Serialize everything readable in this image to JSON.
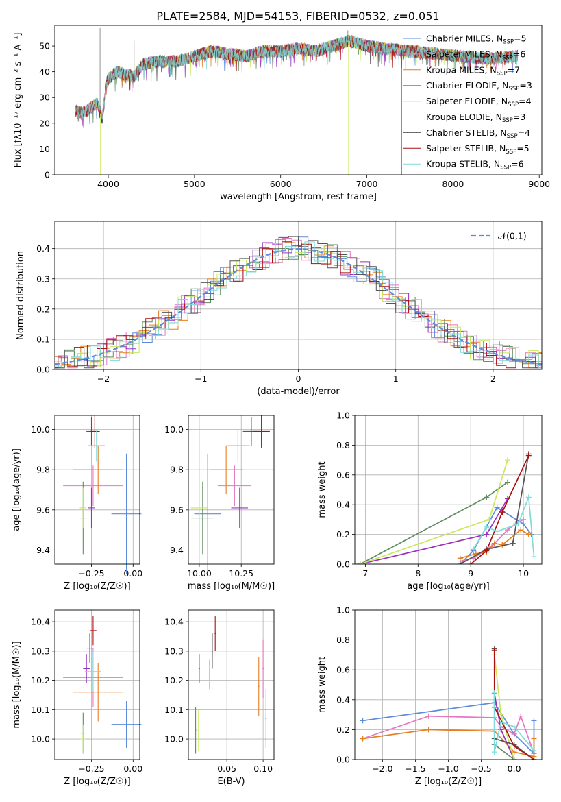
{
  "title": "PLATE=2584, MJD=54153, FIBERID=0532, z=0.051",
  "colors": {
    "chabrier_miles": "#5b8bd9",
    "salpeter_miles": "#e377c2",
    "kroupa_miles": "#e67e22",
    "chabrier_elodie": "#5e8c5e",
    "salpeter_elodie": "#9b30c0",
    "kroupa_elodie": "#c8e85a",
    "chabrier_stelib": "#555555",
    "salpeter_stelib": "#aa1111",
    "kroupa_stelib": "#7fdbdb"
  },
  "chart_data": [
    {
      "id": "spectrum",
      "type": "line",
      "xlabel": "wavelength [Angstrom, rest frame]",
      "ylabel": "Flux [fλ10⁻¹⁷ erg cm⁻² s⁻¹ A⁻¹]",
      "xlim": [
        3380,
        9030
      ],
      "ylim": [
        0,
        58
      ],
      "xticks": [
        "4000",
        "5000",
        "6000",
        "7000",
        "8000",
        "9000"
      ],
      "yticks": [
        "0",
        "10",
        "20",
        "30",
        "40",
        "50"
      ],
      "legend_position": "top-right",
      "series": [
        {
          "name": "Chabrier MILES, N_SSP=5",
          "key": "chabrier_miles"
        },
        {
          "name": "Salpeter MILES, N_SSP=6",
          "key": "salpeter_miles"
        },
        {
          "name": "Kroupa MILES, N_SSP=7",
          "key": "kroupa_miles"
        },
        {
          "name": "Chabrier ELODIE, N_SSP=3",
          "key": "chabrier_elodie"
        },
        {
          "name": "Salpeter ELODIE, N_SSP=4",
          "key": "salpeter_elodie"
        },
        {
          "name": "Kroupa ELODIE, N_SSP=3",
          "key": "kroupa_elodie"
        },
        {
          "name": "Chabrier STELIB, N_SSP=4",
          "key": "chabrier_stelib"
        },
        {
          "name": "Salpeter STELIB, N_SSP=5",
          "key": "salpeter_stelib"
        },
        {
          "name": "Kroupa STELIB, N_SSP=6",
          "key": "kroupa_stelib"
        }
      ],
      "continuum": {
        "x": [
          3620,
          3700,
          3800,
          3870,
          3930,
          3990,
          4100,
          4300,
          4400,
          4600,
          4800,
          5000,
          5200,
          5400,
          5600,
          5800,
          6000,
          6200,
          6400,
          6600,
          6800,
          7000,
          7200,
          7500,
          7800,
          8100,
          8400,
          8750
        ],
        "y": [
          25,
          24,
          26,
          28,
          22,
          37,
          40,
          38,
          43,
          44,
          44,
          46,
          48,
          47,
          46,
          48,
          48,
          49,
          48,
          50,
          52,
          50,
          49,
          48,
          47,
          46,
          45,
          46
        ]
      },
      "spikes": [
        {
          "x": 3905,
          "y": 57
        },
        {
          "x": 4300,
          "y": 52
        },
        {
          "x": 6780,
          "y": 56
        }
      ],
      "dropouts": [
        {
          "x": 3912,
          "key": "kroupa_elodie"
        },
        {
          "x": 6790,
          "key": "kroupa_elodie"
        },
        {
          "x": 7400,
          "key": "salpeter_stelib"
        }
      ]
    },
    {
      "id": "residuals",
      "type": "histogram",
      "xlabel": "(data-model)/error",
      "ylabel": "Normed distribution",
      "xlim": [
        -2.5,
        2.5
      ],
      "ylim": [
        0,
        0.49
      ],
      "xticks": [
        "−2",
        "−1",
        "0",
        "1",
        "2"
      ],
      "yticks": [
        "0.0",
        "0.1",
        "0.2",
        "0.3",
        "0.4"
      ],
      "legend": "𝒩(0,1)",
      "legend_position": "top-right",
      "bin_width": 0.1
    },
    {
      "id": "z_age",
      "type": "scatter",
      "xlabel": "Z [log₁₀(Z/Z☉)]",
      "ylabel": "age  [log₁₀(age/yr)]",
      "xlim": [
        -0.47,
        0.04
      ],
      "ylim": [
        9.33,
        10.07
      ],
      "xticks": [
        "−0.25",
        "0.00"
      ],
      "yticks": [
        "9.4",
        "9.6",
        "9.8",
        "10.0"
      ],
      "points": [
        {
          "key": "chabrier_miles",
          "x": -0.04,
          "xerr": 0.09,
          "y": 9.58,
          "yerr": 0.3
        },
        {
          "key": "salpeter_miles",
          "x": -0.24,
          "xerr": 0.18,
          "y": 9.72,
          "yerr": 0.1
        },
        {
          "key": "kroupa_miles",
          "x": -0.21,
          "xerr": 0.15,
          "y": 9.8,
          "yerr": 0.12
        },
        {
          "key": "chabrier_elodie",
          "x": -0.3,
          "xerr": 0.02,
          "y": 9.56,
          "yerr": 0.18
        },
        {
          "key": "salpeter_elodie",
          "x": -0.25,
          "xerr": 0.02,
          "y": 9.61,
          "yerr": 0.1
        },
        {
          "key": "kroupa_elodie",
          "x": -0.3,
          "xerr": 0.02,
          "y": 9.61,
          "yerr": 0.1
        },
        {
          "key": "chabrier_stelib",
          "x": -0.25,
          "xerr": 0.03,
          "y": 9.99,
          "yerr": 0.07
        },
        {
          "key": "salpeter_stelib",
          "x": -0.23,
          "xerr": 0.03,
          "y": 9.99,
          "yerr": 0.08
        },
        {
          "key": "kroupa_stelib",
          "x": -0.22,
          "xerr": 0.05,
          "y": 9.92,
          "yerr": 0.08
        }
      ]
    },
    {
      "id": "mass_age",
      "type": "scatter",
      "xlabel": "mass [log₁₀(M/M☉)]",
      "ylabel": "",
      "xlim": [
        9.935,
        10.445
      ],
      "ylim": [
        9.33,
        10.07
      ],
      "xticks": [
        "10.00",
        "10.25"
      ],
      "yticks": [
        "9.4",
        "9.6",
        "9.8",
        "10.0"
      ],
      "points": [
        {
          "key": "chabrier_miles",
          "x": 10.05,
          "xerr": 0.08,
          "y": 9.58,
          "yerr": 0.3
        },
        {
          "key": "salpeter_miles",
          "x": 10.21,
          "xerr": 0.1,
          "y": 9.72,
          "yerr": 0.1
        },
        {
          "key": "kroupa_miles",
          "x": 10.16,
          "xerr": 0.1,
          "y": 9.8,
          "yerr": 0.12
        },
        {
          "key": "chabrier_elodie",
          "x": 10.02,
          "xerr": 0.07,
          "y": 9.56,
          "yerr": 0.18
        },
        {
          "key": "salpeter_elodie",
          "x": 10.24,
          "xerr": 0.05,
          "y": 9.61,
          "yerr": 0.1
        },
        {
          "key": "kroupa_elodie",
          "x": 10.0,
          "xerr": 0.05,
          "y": 9.61,
          "yerr": 0.1
        },
        {
          "key": "chabrier_stelib",
          "x": 10.31,
          "xerr": 0.05,
          "y": 9.99,
          "yerr": 0.07
        },
        {
          "key": "salpeter_stelib",
          "x": 10.37,
          "xerr": 0.05,
          "y": 9.99,
          "yerr": 0.08
        },
        {
          "key": "kroupa_stelib",
          "x": 10.23,
          "xerr": 0.07,
          "y": 9.92,
          "yerr": 0.08
        }
      ]
    },
    {
      "id": "weight_age",
      "type": "line",
      "xlabel": "age  [log₁₀(age/yr)]",
      "ylabel": "mass weight",
      "xlim": [
        6.8,
        10.35
      ],
      "ylim": [
        0,
        1
      ],
      "xticks": [
        "7",
        "8",
        "9",
        "10"
      ],
      "yticks": [
        "0.0",
        "0.2",
        "0.4",
        "0.6",
        "0.8",
        "1.0"
      ],
      "series": [
        {
          "key": "chabrier_miles",
          "x": [
            8.8,
            9.05,
            9.5,
            10.0,
            10.15
          ],
          "y": [
            0.0,
            0.09,
            0.38,
            0.27,
            0.2
          ]
        },
        {
          "key": "salpeter_miles",
          "x": [
            8.8,
            9.05,
            9.4,
            9.7,
            9.85,
            10.0
          ],
          "y": [
            0.02,
            0.04,
            0.12,
            0.23,
            0.27,
            0.3
          ]
        },
        {
          "key": "kroupa_miles",
          "x": [
            8.8,
            9.1,
            9.3,
            9.45,
            9.6,
            9.95,
            10.1
          ],
          "y": [
            0.04,
            0.07,
            0.08,
            0.14,
            0.13,
            0.23,
            0.2
          ]
        },
        {
          "key": "chabrier_elodie",
          "x": [
            6.9,
            9.3,
            9.7
          ],
          "y": [
            0.0,
            0.45,
            0.55
          ]
        },
        {
          "key": "salpeter_elodie",
          "x": [
            6.9,
            9.3,
            9.7
          ],
          "y": [
            0.0,
            0.2,
            0.44
          ]
        },
        {
          "key": "kroupa_elodie",
          "x": [
            6.9,
            9.35,
            9.7
          ],
          "y": [
            0.0,
            0.3,
            0.7
          ]
        },
        {
          "key": "chabrier_stelib",
          "x": [
            8.8,
            9.3,
            9.8,
            10.1
          ],
          "y": [
            0.0,
            0.1,
            0.14,
            0.74
          ]
        },
        {
          "key": "salpeter_stelib",
          "x": [
            9.0,
            9.3,
            9.6,
            10.1
          ],
          "y": [
            0.0,
            0.09,
            0.35,
            0.73
          ]
        },
        {
          "key": "kroupa_stelib",
          "x": [
            9.05,
            9.3,
            9.5,
            9.9,
            10.1,
            10.2
          ],
          "y": [
            0.1,
            0.25,
            0.22,
            0.27,
            0.45,
            0.05
          ]
        }
      ]
    },
    {
      "id": "z_mass",
      "type": "scatter",
      "xlabel": "Z [log₁₀(Z/Z☉)]",
      "ylabel": "mass [log₁₀(M/M☉)]",
      "xlim": [
        -0.47,
        0.04
      ],
      "ylim": [
        9.93,
        10.44
      ],
      "xticks": [
        "−0.25",
        "0.00"
      ],
      "yticks": [
        "10.0",
        "10.1",
        "10.2",
        "10.3",
        "10.4"
      ],
      "points": [
        {
          "key": "chabrier_miles",
          "x": -0.04,
          "xerr": 0.09,
          "y": 10.05,
          "yerr": 0.08
        },
        {
          "key": "salpeter_miles",
          "x": -0.24,
          "xerr": 0.18,
          "y": 10.21,
          "yerr": 0.1
        },
        {
          "key": "kroupa_miles",
          "x": -0.21,
          "xerr": 0.15,
          "y": 10.16,
          "yerr": 0.1
        },
        {
          "key": "chabrier_elodie",
          "x": -0.3,
          "xerr": 0.02,
          "y": 10.02,
          "yerr": 0.07
        },
        {
          "key": "salpeter_elodie",
          "x": -0.28,
          "xerr": 0.02,
          "y": 10.24,
          "yerr": 0.05
        },
        {
          "key": "kroupa_elodie",
          "x": -0.3,
          "xerr": 0.02,
          "y": 10.0,
          "yerr": 0.05
        },
        {
          "key": "chabrier_stelib",
          "x": -0.26,
          "xerr": 0.02,
          "y": 10.31,
          "yerr": 0.05
        },
        {
          "key": "salpeter_stelib",
          "x": -0.24,
          "xerr": 0.02,
          "y": 10.37,
          "yerr": 0.05
        },
        {
          "key": "kroupa_stelib",
          "x": -0.24,
          "xerr": 0.05,
          "y": 10.23,
          "yerr": 0.07
        }
      ]
    },
    {
      "id": "ebv_mass",
      "type": "scatter",
      "xlabel": "E(B-V)",
      "ylabel": "",
      "xlim": [
        -0.003,
        0.115
      ],
      "ylim": [
        9.93,
        10.44
      ],
      "xticks": [
        "0.05",
        "0.10"
      ],
      "yticks": [
        "10.0",
        "10.1",
        "10.2",
        "10.3",
        "10.4"
      ],
      "points": [
        {
          "key": "chabrier_miles",
          "x": 0.104,
          "y": 10.07,
          "yerr": 0.1
        },
        {
          "key": "salpeter_miles",
          "x": 0.1,
          "y": 10.24,
          "yerr": 0.1
        },
        {
          "key": "kroupa_miles",
          "x": 0.094,
          "y": 10.18,
          "yerr": 0.1
        },
        {
          "key": "chabrier_elodie",
          "x": 0.007,
          "y": 10.03,
          "yerr": 0.08
        },
        {
          "key": "salpeter_elodie",
          "x": 0.012,
          "y": 10.24,
          "yerr": 0.05
        },
        {
          "key": "kroupa_elodie",
          "x": 0.011,
          "y": 10.03,
          "yerr": 0.07
        },
        {
          "key": "chabrier_stelib",
          "x": 0.03,
          "y": 10.3,
          "yerr": 0.06
        },
        {
          "key": "salpeter_stelib",
          "x": 0.034,
          "y": 10.36,
          "yerr": 0.06
        },
        {
          "key": "kroupa_stelib",
          "x": 0.026,
          "y": 10.22,
          "yerr": 0.05
        }
      ]
    },
    {
      "id": "weight_z",
      "type": "line",
      "xlabel": "Z [log₁₀(Z/Z☉)]",
      "ylabel": "mass weight",
      "xlim": [
        -2.42,
        0.42
      ],
      "ylim": [
        0,
        1
      ],
      "xticks": [
        "−2.0",
        "−1.5",
        "−1.0",
        "−0.5",
        "0.0"
      ],
      "yticks": [
        "0.0",
        "0.2",
        "0.4",
        "0.6",
        "0.8",
        "1.0"
      ],
      "series": [
        {
          "key": "chabrier_miles",
          "x": [
            -2.3,
            -0.3,
            0.0,
            0.3,
            0.3
          ],
          "y": [
            0.26,
            0.38,
            0.17,
            0.04,
            0.26
          ]
        },
        {
          "key": "salpeter_miles",
          "x": [
            -2.3,
            -1.3,
            -0.3,
            -0.2,
            0.0,
            0.1,
            0.3
          ],
          "y": [
            0.14,
            0.29,
            0.28,
            0.22,
            0.17,
            0.29,
            0.04
          ]
        },
        {
          "key": "kroupa_miles",
          "x": [
            -2.3,
            -1.3,
            -0.3,
            0.0,
            0.3,
            0.3
          ],
          "y": [
            0.14,
            0.2,
            0.19,
            0.05,
            0.02,
            0.14
          ]
        },
        {
          "key": "chabrier_elodie",
          "x": [
            -0.3,
            -0.3,
            0.0
          ],
          "y": [
            0.45,
            0.1,
            0.0
          ]
        },
        {
          "key": "salpeter_elodie",
          "x": [
            -0.3,
            -0.2,
            0.0
          ],
          "y": [
            0.44,
            0.2,
            0.0
          ]
        },
        {
          "key": "kroupa_elodie",
          "x": [
            -0.3,
            -0.2,
            0.0
          ],
          "y": [
            0.7,
            0.3,
            0.0
          ]
        },
        {
          "key": "chabrier_stelib",
          "x": [
            -0.3,
            -0.3,
            0.0,
            0.3
          ],
          "y": [
            0.74,
            0.14,
            0.1,
            0.0
          ]
        },
        {
          "key": "salpeter_stelib",
          "x": [
            -0.3,
            -0.3,
            0.0,
            0.3
          ],
          "y": [
            0.73,
            0.35,
            0.09,
            0.0
          ]
        },
        {
          "key": "kroupa_stelib",
          "x": [
            -0.3,
            -0.3,
            -0.2,
            0.0,
            0.3
          ],
          "y": [
            0.45,
            0.05,
            0.25,
            0.22,
            0.06
          ]
        }
      ]
    }
  ]
}
